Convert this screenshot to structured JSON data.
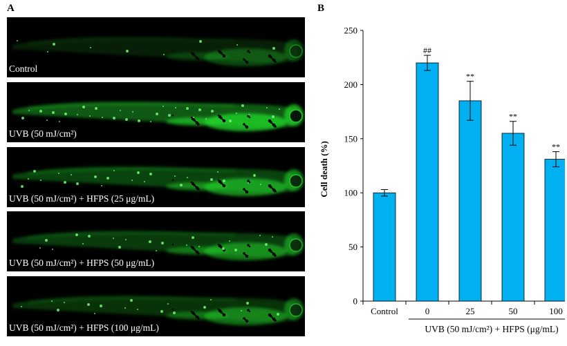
{
  "panel_a": {
    "letter": "A",
    "images": [
      {
        "label": "Control",
        "fluorescence": 0.15
      },
      {
        "label": "UVB (50 mJ/cm²)",
        "fluorescence": 1.0
      },
      {
        "label": "UVB (50 mJ/cm²) + HFPS (25 μg/mL)",
        "fluorescence": 0.7
      },
      {
        "label": "UVB (50 mJ/cm²) + HFPS (50 μg/mL)",
        "fluorescence": 0.55
      },
      {
        "label": "UVB (50 mJ/cm²) + HFPS (100 μg/mL)",
        "fluorescence": 0.45
      }
    ]
  },
  "panel_b": {
    "letter": "B"
  },
  "chart_data": {
    "type": "bar",
    "categories": [
      "Control",
      "0",
      "25",
      "50",
      "100"
    ],
    "values": [
      100,
      220,
      185,
      155,
      131
    ],
    "errors": [
      3,
      7,
      18,
      11,
      7
    ],
    "annotations": [
      "",
      "##",
      "**",
      "**",
      "**"
    ],
    "ylabel": "Cell death (%)",
    "ylim": [
      0,
      250
    ],
    "yticks": [
      0,
      50,
      100,
      150,
      200,
      250
    ],
    "group_label": "UVB (50 mJ/cm²) + HFPS (μg/mL)",
    "grid": false,
    "bar_color": "#00b0f0"
  },
  "colors": {
    "fluorescence": "#22d32a",
    "background": "#000000"
  }
}
